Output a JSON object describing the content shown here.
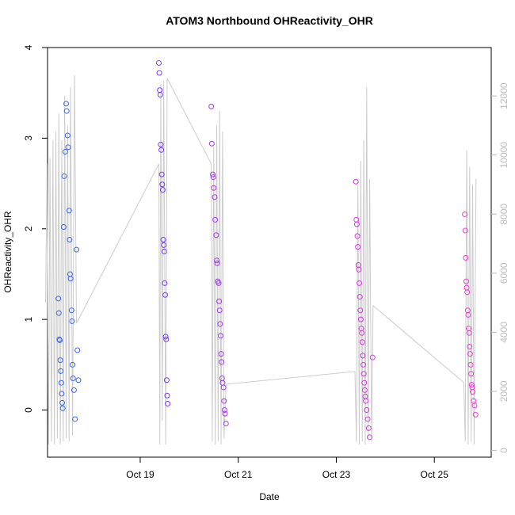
{
  "chart_data": {
    "type": "scatter",
    "title": "ATOM3 Northbound OHReactivity_OHR",
    "xlabel": "Date",
    "ylabel": "OHReactivity_OHR",
    "xlim": [
      17.11,
      26.16
    ],
    "ylim": [
      -0.52,
      4.0
    ],
    "y2lim": [
      -230,
      13640
    ],
    "xticks": [
      {
        "value": 19,
        "label": "Oct 19"
      },
      {
        "value": 21,
        "label": "Oct 21"
      },
      {
        "value": 23,
        "label": "Oct 23"
      },
      {
        "value": 25,
        "label": "Oct 25"
      }
    ],
    "yticks": [
      0,
      1,
      2,
      3,
      4
    ],
    "y2ticks": [
      0,
      2000,
      4000,
      6000,
      8000,
      10000,
      12000
    ],
    "y2color": "#bbbbbb",
    "series": [
      {
        "color": "#cccccc",
        "axis": "y2",
        "kind": "line",
        "x": [
          17.07,
          17.1,
          17.13,
          17.16,
          17.19,
          17.22,
          17.25,
          17.28,
          17.31,
          17.34,
          17.37,
          17.4,
          17.43,
          17.46,
          17.49,
          17.52,
          17.55,
          17.58,
          17.62,
          17.66,
          17.7,
          19.38,
          19.4,
          19.42,
          19.45,
          19.48,
          19.52,
          19.55,
          20.45,
          20.47,
          20.5,
          20.53,
          20.56,
          20.59,
          20.62,
          20.65,
          20.68,
          20.71,
          20.75,
          23.38,
          23.41,
          23.44,
          23.47,
          23.5,
          23.53,
          23.56,
          23.59,
          23.62,
          23.65,
          23.68,
          23.72,
          23.75,
          25.6,
          25.63,
          25.66,
          25.69,
          25.72,
          25.75,
          25.78,
          25.81,
          25.85
        ],
        "values": [
          5000,
          9700,
          200,
          9900,
          300,
          10500,
          200,
          10800,
          400,
          11400,
          200,
          10500,
          300,
          12000,
          400,
          11000,
          300,
          12300,
          500,
          12700,
          4300,
          9700,
          200,
          12400,
          1000,
          12500,
          200,
          12600,
          9700,
          300,
          10300,
          200,
          11000,
          300,
          11500,
          200,
          10800,
          400,
          2240,
          2670,
          300,
          9000,
          200,
          9800,
          300,
          10500,
          200,
          12300,
          400,
          9200,
          300,
          4900,
          2300,
          300,
          10150,
          200,
          9600,
          300,
          9000,
          200,
          9200
        ]
      },
      {
        "color": "#3a66f0",
        "x": [
          17.33,
          17.34,
          17.35,
          17.36,
          17.37,
          17.38,
          17.39,
          17.4,
          17.41,
          17.42,
          17.44,
          17.45,
          17.47,
          17.49,
          17.5,
          17.52,
          17.53,
          17.55,
          17.56,
          17.57,
          17.58,
          17.6,
          17.61,
          17.62,
          17.63,
          17.65,
          17.67,
          17.7,
          17.72,
          17.74
        ],
        "values": [
          1.23,
          1.07,
          0.78,
          0.77,
          0.55,
          0.43,
          0.3,
          0.18,
          0.08,
          0.02,
          2.02,
          2.58,
          2.85,
          3.38,
          3.3,
          3.03,
          2.9,
          2.2,
          1.88,
          1.5,
          1.45,
          1.1,
          0.98,
          0.5,
          0.35,
          0.22,
          -0.1,
          1.77,
          0.66,
          0.33
        ]
      },
      {
        "color": "#7a3cf2",
        "x": [
          19.38,
          19.39,
          19.4,
          19.41,
          19.42,
          19.43,
          19.44,
          19.45,
          19.46,
          19.47,
          19.48,
          19.49,
          19.5,
          19.51,
          19.52,
          19.53,
          19.54,
          19.55,
          19.56
        ],
        "values": [
          3.83,
          3.72,
          3.53,
          3.48,
          2.93,
          2.87,
          2.6,
          2.49,
          2.43,
          1.88,
          1.82,
          1.75,
          1.4,
          1.27,
          0.81,
          0.78,
          0.33,
          0.16,
          0.07
        ]
      },
      {
        "color": "#a43ce8",
        "x": [
          20.45,
          20.46,
          20.48,
          20.49,
          20.5,
          20.52,
          20.53,
          20.55,
          20.56,
          20.57,
          20.58,
          20.6,
          20.61,
          20.62,
          20.63,
          20.64,
          20.65,
          20.66,
          20.67,
          20.68,
          20.7,
          20.71,
          20.72,
          20.73,
          20.75
        ],
        "values": [
          3.35,
          2.94,
          2.6,
          2.57,
          2.45,
          2.35,
          2.1,
          1.93,
          1.65,
          1.62,
          1.42,
          1.4,
          1.2,
          1.1,
          0.95,
          0.82,
          0.62,
          0.53,
          0.35,
          0.3,
          0.25,
          0.1,
          0.0,
          -0.04,
          -0.15
        ]
      },
      {
        "color": "#d03adc",
        "x": [
          23.4,
          23.41,
          23.42,
          23.43,
          23.44,
          23.45,
          23.46,
          23.47,
          23.48,
          23.49,
          23.5,
          23.51,
          23.52,
          23.53,
          23.54,
          23.55,
          23.56,
          23.57,
          23.58,
          23.59,
          23.6,
          23.62,
          23.64,
          23.66,
          23.68,
          23.74
        ],
        "values": [
          2.52,
          2.1,
          2.05,
          1.92,
          1.8,
          1.6,
          1.55,
          1.4,
          1.25,
          1.1,
          1.0,
          0.9,
          0.85,
          0.75,
          0.6,
          0.5,
          0.4,
          0.3,
          0.22,
          0.15,
          0.1,
          0.0,
          -0.1,
          -0.2,
          -0.3,
          0.58
        ]
      },
      {
        "color": "#ee3ad6",
        "x": [
          25.62,
          25.63,
          25.64,
          25.65,
          25.66,
          25.67,
          25.68,
          25.69,
          25.7,
          25.71,
          25.72,
          25.73,
          25.74,
          25.75,
          25.76,
          25.77,
          25.78,
          25.8,
          25.82,
          25.84
        ],
        "values": [
          2.16,
          1.98,
          1.68,
          1.42,
          1.35,
          1.3,
          1.1,
          1.05,
          0.9,
          0.85,
          0.7,
          0.62,
          0.5,
          0.4,
          0.28,
          0.25,
          0.2,
          0.1,
          0.05,
          -0.05
        ]
      }
    ]
  }
}
